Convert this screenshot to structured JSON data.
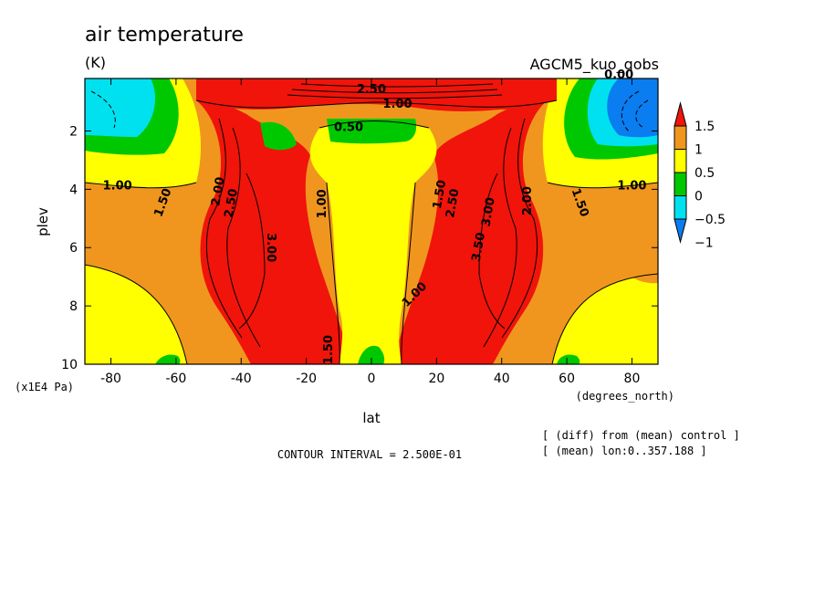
{
  "chart_data": {
    "type": "heatmap",
    "title": "air temperature",
    "units": "(K)",
    "model_label": "AGCM5_kuo_qobs",
    "xlabel": "lat",
    "x_units": "(degrees_north)",
    "ylabel": "plev",
    "y_units": "(x1E4 Pa)",
    "x_ticks": [
      -80,
      -60,
      -40,
      -20,
      0,
      20,
      40,
      60,
      80
    ],
    "x_tick_labels": [
      "-80",
      "-60",
      "-40",
      "-20",
      "0",
      "20",
      "40",
      "60",
      "80"
    ],
    "y_ticks": [
      2,
      4,
      6,
      8,
      10
    ],
    "y_tick_labels": [
      "2",
      "4",
      "6",
      "8",
      "10"
    ],
    "xlim": [
      -88,
      88
    ],
    "ylim": [
      0.2,
      10
    ],
    "y_inverted": true,
    "contour_interval_text": "CONTOUR INTERVAL = 2.500E-01",
    "notes": [
      "[ (diff) from (mean) control ]",
      "[ (mean) lon:0..357.188 ]"
    ],
    "colorbar": {
      "labels": [
        "1.5",
        "1",
        "0.5",
        "0",
        "−0.5",
        "−1"
      ],
      "levels": [
        -1,
        -0.5,
        0,
        0.5,
        1,
        1.5
      ],
      "colors": [
        "#0a7df0",
        "#00e1f0",
        "#00c800",
        "#ffff00",
        "#f0961e",
        "#f0140a"
      ]
    },
    "contour_labels": [
      {
        "text": "1.00",
        "x": -78,
        "y": 4.0,
        "rot": 0
      },
      {
        "text": "1.50",
        "x": -63,
        "y": 4.5,
        "rot": -70
      },
      {
        "text": "2.00",
        "x": -46,
        "y": 4.1,
        "rot": -80
      },
      {
        "text": "2.50",
        "x": -42,
        "y": 4.5,
        "rot": -80
      },
      {
        "text": "3.00",
        "x": -32,
        "y": 6.0,
        "rot": 90
      },
      {
        "text": "1.00",
        "x": -14,
        "y": 4.5,
        "rot": -90
      },
      {
        "text": "0.50",
        "x": -7,
        "y": 2.0,
        "rot": 0
      },
      {
        "text": "1.00",
        "x": 8,
        "y": 1.2,
        "rot": 0
      },
      {
        "text": "2.50",
        "x": 0,
        "y": 0.7,
        "rot": 0
      },
      {
        "text": "0.00",
        "x": 76,
        "y": 0.2,
        "rot": 0
      },
      {
        "text": "1.50",
        "x": 22,
        "y": 4.2,
        "rot": -80
      },
      {
        "text": "2.50",
        "x": 26,
        "y": 4.5,
        "rot": -80
      },
      {
        "text": "3.00",
        "x": 37,
        "y": 4.8,
        "rot": -80
      },
      {
        "text": "3.50",
        "x": 34,
        "y": 6.0,
        "rot": -80
      },
      {
        "text": "2.00",
        "x": 49,
        "y": 4.4,
        "rot": -90
      },
      {
        "text": "1.50",
        "x": 63,
        "y": 4.5,
        "rot": 70
      },
      {
        "text": "1.00",
        "x": 80,
        "y": 4.0,
        "rot": 0
      },
      {
        "text": "1.00",
        "x": 14,
        "y": 7.7,
        "rot": -45
      },
      {
        "text": "1.50",
        "x": -12,
        "y": 9.5,
        "rot": -90
      }
    ]
  }
}
